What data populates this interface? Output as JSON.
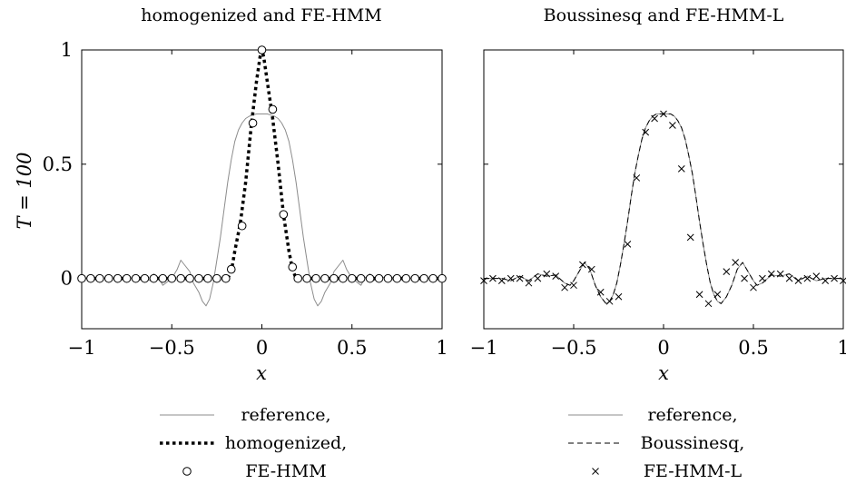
{
  "chart_data": [
    {
      "type": "line",
      "title": "homogenized and FE-HMM",
      "xlabel": "x",
      "ylabel": "T = 100",
      "xlim": [
        -1,
        1
      ],
      "ylim": [
        -0.22,
        1
      ],
      "xticks": [
        -1,
        -0.5,
        0,
        0.5,
        1
      ],
      "xtick_labels": [
        "−1",
        "−0.5",
        "0",
        "0.5",
        "1"
      ],
      "yticks": [
        0,
        0.5,
        1
      ],
      "ytick_labels": [
        "0",
        "0.5",
        "1"
      ],
      "grid": false,
      "legend_position": "bottom",
      "series": [
        {
          "name": "reference,",
          "style": "solid",
          "color": "#8c8c8c",
          "x": [
            -1.0,
            -0.7,
            -0.65,
            -0.62,
            -0.6,
            -0.57,
            -0.55,
            -0.5,
            -0.47,
            -0.45,
            -0.43,
            -0.4,
            -0.38,
            -0.35,
            -0.33,
            -0.31,
            -0.29,
            -0.27,
            -0.25,
            -0.23,
            -0.21,
            -0.19,
            -0.17,
            -0.15,
            -0.13,
            -0.11,
            -0.09,
            -0.07,
            -0.05,
            -0.03,
            -0.01,
            0.01,
            0.03,
            0.05,
            0.07,
            0.09,
            0.11,
            0.13,
            0.15,
            0.17,
            0.19,
            0.21,
            0.23,
            0.25,
            0.27,
            0.29,
            0.31,
            0.33,
            0.35,
            0.38,
            0.4,
            0.43,
            0.45,
            0.47,
            0.5,
            0.55,
            0.57,
            0.6,
            0.62,
            0.65,
            0.7,
            1.0
          ],
          "y": [
            0.0,
            0.0,
            0.01,
            -0.01,
            0.02,
            0.0,
            -0.03,
            0.0,
            0.04,
            0.08,
            0.06,
            0.03,
            -0.02,
            -0.06,
            -0.1,
            -0.12,
            -0.09,
            -0.02,
            0.08,
            0.18,
            0.3,
            0.42,
            0.52,
            0.6,
            0.65,
            0.68,
            0.7,
            0.71,
            0.715,
            0.72,
            0.72,
            0.72,
            0.72,
            0.715,
            0.71,
            0.7,
            0.68,
            0.65,
            0.6,
            0.52,
            0.42,
            0.3,
            0.18,
            0.08,
            -0.02,
            -0.09,
            -0.12,
            -0.1,
            -0.06,
            -0.02,
            0.03,
            0.06,
            0.08,
            0.04,
            0.0,
            -0.03,
            0.0,
            0.02,
            -0.01,
            0.01,
            0.0,
            0.0
          ]
        },
        {
          "name": "homogenized,",
          "style": "dotted",
          "color": "#000000",
          "x": [
            -1.0,
            -0.19,
            -0.17,
            -0.15,
            -0.12,
            -0.09,
            -0.06,
            -0.03,
            -0.01,
            0.0,
            0.01,
            0.03,
            0.06,
            0.09,
            0.12,
            0.15,
            0.17,
            0.19,
            1.0
          ],
          "y": [
            0.0,
            0.0,
            0.03,
            0.12,
            0.24,
            0.42,
            0.66,
            0.86,
            0.97,
            1.0,
            0.97,
            0.86,
            0.7,
            0.5,
            0.28,
            0.12,
            0.04,
            0.0,
            0.0
          ]
        },
        {
          "name": "FE-HMM",
          "style": "markers-circle",
          "color": "#000000",
          "x": [
            -1.0,
            -0.95,
            -0.9,
            -0.85,
            -0.8,
            -0.75,
            -0.7,
            -0.65,
            -0.6,
            -0.55,
            -0.5,
            -0.45,
            -0.4,
            -0.35,
            -0.3,
            -0.25,
            -0.2,
            -0.17,
            -0.11,
            -0.05,
            0.0,
            0.06,
            0.12,
            0.17,
            0.2,
            0.25,
            0.3,
            0.35,
            0.4,
            0.45,
            0.5,
            0.55,
            0.6,
            0.65,
            0.7,
            0.75,
            0.8,
            0.85,
            0.9,
            0.95,
            1.0
          ],
          "y": [
            0,
            0,
            0,
            0,
            0,
            0,
            0,
            0,
            0,
            0,
            0,
            0,
            0,
            0,
            0,
            0,
            0,
            0.04,
            0.23,
            0.68,
            1.0,
            0.74,
            0.28,
            0.05,
            0,
            0,
            0,
            0,
            0,
            0,
            0,
            0,
            0,
            0,
            0,
            0,
            0,
            0,
            0,
            0,
            0
          ]
        }
      ]
    },
    {
      "type": "line",
      "title": "Boussinesq and FE-HMM-L",
      "xlabel": "x",
      "xlim": [
        -1,
        1
      ],
      "ylim": [
        -0.22,
        1
      ],
      "xticks": [
        -1,
        -0.5,
        0,
        0.5,
        1
      ],
      "xtick_labels": [
        "−1",
        "−0.5",
        "0",
        "0.5",
        "1"
      ],
      "yticks": [
        0,
        0.5,
        1
      ],
      "grid": false,
      "legend_position": "bottom",
      "series": [
        {
          "name": "reference,",
          "style": "solid",
          "color": "#8c8c8c",
          "x": [
            -1.0,
            -0.9,
            -0.85,
            -0.8,
            -0.75,
            -0.7,
            -0.65,
            -0.6,
            -0.55,
            -0.52,
            -0.5,
            -0.47,
            -0.44,
            -0.41,
            -0.38,
            -0.35,
            -0.32,
            -0.3,
            -0.28,
            -0.26,
            -0.24,
            -0.22,
            -0.2,
            -0.18,
            -0.16,
            -0.14,
            -0.12,
            -0.1,
            -0.08,
            -0.06,
            -0.04,
            -0.02,
            0.0,
            0.02,
            0.04,
            0.06,
            0.08,
            0.1,
            0.12,
            0.14,
            0.16,
            0.18,
            0.2,
            0.22,
            0.24,
            0.26,
            0.28,
            0.3,
            0.32,
            0.35,
            0.38,
            0.41,
            0.44,
            0.47,
            0.5,
            0.52,
            0.55,
            0.6,
            0.65,
            0.7,
            0.75,
            0.8,
            0.85,
            0.9,
            1.0
          ],
          "y": [
            0.0,
            0.0,
            -0.01,
            0.01,
            -0.01,
            0.02,
            0.01,
            0.015,
            -0.02,
            -0.03,
            -0.01,
            0.03,
            0.07,
            0.04,
            -0.03,
            -0.08,
            -0.11,
            -0.1,
            -0.07,
            -0.02,
            0.06,
            0.15,
            0.25,
            0.36,
            0.46,
            0.54,
            0.61,
            0.66,
            0.69,
            0.71,
            0.72,
            0.72,
            0.72,
            0.72,
            0.72,
            0.71,
            0.69,
            0.66,
            0.61,
            0.54,
            0.46,
            0.36,
            0.25,
            0.15,
            0.06,
            -0.02,
            -0.07,
            -0.1,
            -0.11,
            -0.08,
            -0.03,
            0.04,
            0.07,
            0.03,
            -0.01,
            -0.03,
            -0.02,
            0.015,
            0.01,
            0.02,
            -0.01,
            0.01,
            -0.01,
            0.0,
            0.0
          ]
        },
        {
          "name": "Boussinesq,",
          "style": "dashed",
          "color": "#000000",
          "x": [
            -1.0,
            -0.9,
            -0.85,
            -0.8,
            -0.75,
            -0.7,
            -0.65,
            -0.6,
            -0.55,
            -0.52,
            -0.5,
            -0.47,
            -0.44,
            -0.41,
            -0.38,
            -0.35,
            -0.32,
            -0.3,
            -0.28,
            -0.26,
            -0.24,
            -0.22,
            -0.2,
            -0.18,
            -0.16,
            -0.14,
            -0.12,
            -0.1,
            -0.08,
            -0.06,
            -0.04,
            -0.02,
            0.0,
            0.02,
            0.04,
            0.06,
            0.08,
            0.1,
            0.12,
            0.14,
            0.16,
            0.18,
            0.2,
            0.22,
            0.24,
            0.26,
            0.28,
            0.3,
            0.32,
            0.35,
            0.38,
            0.41,
            0.44,
            0.47,
            0.5,
            0.52,
            0.55,
            0.6,
            0.65,
            0.7,
            0.75,
            0.8,
            0.85,
            0.9,
            1.0
          ],
          "y": [
            0.0,
            0.0,
            -0.01,
            0.01,
            -0.01,
            0.02,
            0.01,
            0.015,
            -0.02,
            -0.03,
            -0.01,
            0.03,
            0.07,
            0.04,
            -0.03,
            -0.08,
            -0.11,
            -0.1,
            -0.07,
            -0.02,
            0.06,
            0.15,
            0.25,
            0.36,
            0.46,
            0.54,
            0.61,
            0.66,
            0.69,
            0.71,
            0.72,
            0.72,
            0.72,
            0.72,
            0.72,
            0.71,
            0.69,
            0.66,
            0.61,
            0.54,
            0.46,
            0.36,
            0.25,
            0.15,
            0.06,
            -0.02,
            -0.07,
            -0.1,
            -0.11,
            -0.08,
            -0.03,
            0.04,
            0.07,
            0.03,
            -0.01,
            -0.03,
            -0.02,
            0.015,
            0.01,
            0.02,
            -0.01,
            0.01,
            -0.01,
            0.0,
            0.0
          ]
        },
        {
          "name": "FE-HMM-L",
          "style": "markers-cross",
          "color": "#000000",
          "x": [
            -1.0,
            -0.95,
            -0.9,
            -0.85,
            -0.8,
            -0.75,
            -0.7,
            -0.65,
            -0.6,
            -0.55,
            -0.5,
            -0.45,
            -0.4,
            -0.35,
            -0.3,
            -0.25,
            -0.2,
            -0.15,
            -0.1,
            -0.05,
            0.0,
            0.05,
            0.1,
            0.15,
            0.2,
            0.25,
            0.3,
            0.35,
            0.4,
            0.45,
            0.5,
            0.55,
            0.6,
            0.65,
            0.7,
            0.75,
            0.8,
            0.85,
            0.9,
            0.95,
            1.0
          ],
          "y": [
            -0.01,
            0.0,
            -0.01,
            0.0,
            0.0,
            -0.02,
            0.0,
            0.02,
            0.01,
            -0.04,
            -0.03,
            0.06,
            0.04,
            -0.06,
            -0.1,
            -0.08,
            0.15,
            0.44,
            0.64,
            0.7,
            0.72,
            0.67,
            0.48,
            0.18,
            -0.07,
            -0.11,
            -0.07,
            0.03,
            0.07,
            0.0,
            -0.04,
            0.0,
            0.02,
            0.02,
            0.0,
            -0.01,
            0.0,
            0.01,
            -0.01,
            0.0,
            -0.01
          ]
        }
      ]
    }
  ],
  "left_legend": {
    "items": [
      {
        "label": "reference,"
      },
      {
        "label": "homogenized,"
      },
      {
        "label": "FE-HMM"
      }
    ]
  },
  "right_legend": {
    "items": [
      {
        "label": "reference,"
      },
      {
        "label": "Boussinesq,"
      },
      {
        "label": "FE-HMM-L"
      }
    ]
  }
}
